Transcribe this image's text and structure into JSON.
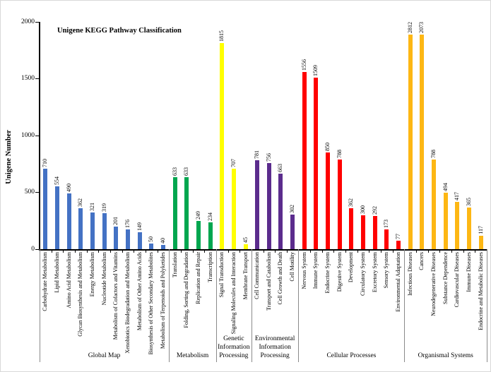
{
  "chart_data": {
    "type": "bar",
    "title": "Unigene KEGG Pathway Classification",
    "ylabel": "Unigene Number",
    "xlabel": "",
    "ylim": [
      0,
      2000
    ],
    "y_ticks": [
      0,
      500,
      1000,
      1500,
      2000
    ],
    "grid": false,
    "legend": "none",
    "bars_clipped_at_ymax": true,
    "groups": [
      {
        "name": "Global Map",
        "label": "Global Map",
        "color": "#4472C4",
        "bars": [
          {
            "label": "Carbohydrate Metabolism",
            "value": 710
          },
          {
            "label": "Lipid Metabolism",
            "value": 554
          },
          {
            "label": "Amino Acid Metabolism",
            "value": 490
          },
          {
            "label": "Glycan Biosynthesis and Metabolism",
            "value": 362
          },
          {
            "label": "Energy Metabolism",
            "value": 321
          },
          {
            "label": "Nucleotide Metabolism",
            "value": 319
          },
          {
            "label": "Metabolism of Cofactors and Vitamins",
            "value": 201
          },
          {
            "label": "Xenobiotics Biodegradation and Metabolism",
            "value": 176
          },
          {
            "label": "Metabolism of Other Amino Acids",
            "value": 149
          },
          {
            "label": "Biosynthesis of Other Secondary Metabolites",
            "value": 50
          },
          {
            "label": "Metabolism of Terpenoids and Polyketides",
            "value": 40
          }
        ]
      },
      {
        "name": "Metabolism",
        "label": "Metabolism",
        "color": "#00A64F",
        "bars": [
          {
            "label": "Translation",
            "value": 633
          },
          {
            "label": "Folding, Sorting and Degradation",
            "value": 633
          },
          {
            "label": "Replication and Repair",
            "value": 249
          },
          {
            "label": "Transcription",
            "value": 234
          }
        ]
      },
      {
        "name": "Genetic Information Processing",
        "label": "Genetic\nInformation\nProcessing",
        "color": "#FFFF00",
        "bars": [
          {
            "label": "Signal Transduction",
            "value": 1815
          },
          {
            "label": "Signaling Molecules and Interaction",
            "value": 707
          },
          {
            "label": "Membrane Transport",
            "value": 45
          }
        ]
      },
      {
        "name": "Environmental Information Processing",
        "label": "Environmental\nInformation\nProcessing",
        "color": "#5B2C8D",
        "bars": [
          {
            "label": "Cell Communication",
            "value": 781
          },
          {
            "label": "Transport and Catabolism",
            "value": 756
          },
          {
            "label": "Cell Growth and Death",
            "value": 663
          },
          {
            "label": "Cell Motility",
            "value": 302
          }
        ]
      },
      {
        "name": "Cellular Processes",
        "label": "Cellular Processes",
        "color": "#FF0000",
        "bars": [
          {
            "label": "Nervous System",
            "value": 1556
          },
          {
            "label": "Immune System",
            "value": 1509
          },
          {
            "label": "Endocrine System",
            "value": 850
          },
          {
            "label": "Digestive System",
            "value": 788
          },
          {
            "label": "Development",
            "value": 362
          },
          {
            "label": "Circulatory System",
            "value": 300
          },
          {
            "label": "Excretory System",
            "value": 292
          },
          {
            "label": "Sensory System",
            "value": 173
          },
          {
            "label": "Environmental Adaptation",
            "value": 77
          }
        ]
      },
      {
        "name": "Organismal Systems",
        "label": "Organismal Systems",
        "color": "#FDB714",
        "bars": [
          {
            "label": "Infectious Diseases",
            "value": 2812
          },
          {
            "label": "Cancers",
            "value": 2073
          },
          {
            "label": "Neurodegenerative Diseases",
            "value": 788
          },
          {
            "label": "Substance Dependence",
            "value": 494
          },
          {
            "label": "Cardiovascular Diseases",
            "value": 417
          },
          {
            "label": "Immune Diseases",
            "value": 365
          },
          {
            "label": "Endocrine and Metabolic Diseases",
            "value": 117
          }
        ]
      }
    ]
  }
}
